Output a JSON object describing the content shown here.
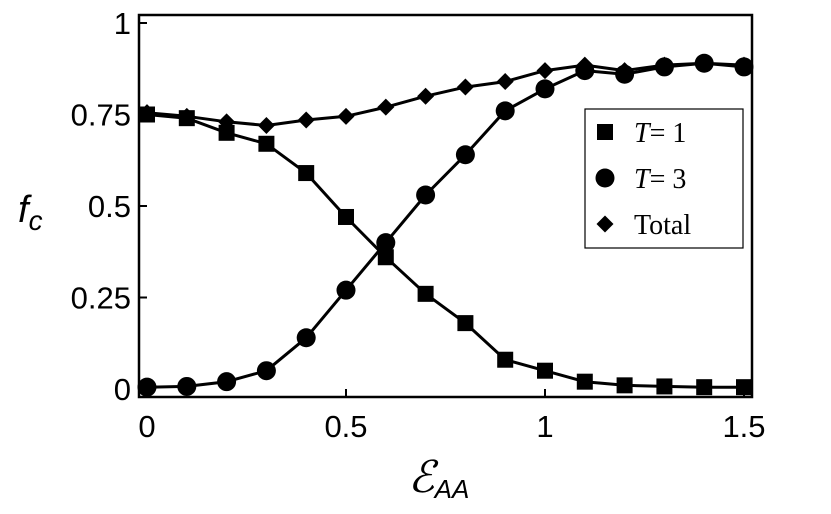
{
  "chart_data": {
    "type": "line",
    "x_axis": {
      "label_main": "ℰ",
      "label_sub": "AA",
      "range": [
        0,
        1.5
      ],
      "ticks": [
        {
          "value": 0,
          "label": "0"
        },
        {
          "value": 0.5,
          "label": "0.5"
        },
        {
          "value": 1,
          "label": "1"
        },
        {
          "value": 1.5,
          "label": "1.5"
        }
      ]
    },
    "y_axis": {
      "label_main": "f",
      "label_sub": "c",
      "range": [
        0,
        1
      ],
      "ticks": [
        {
          "value": 0,
          "label": "0"
        },
        {
          "value": 0.25,
          "label": "0.25"
        },
        {
          "value": 0.5,
          "label": "0.5"
        },
        {
          "value": 0.75,
          "label": "0.75"
        },
        {
          "value": 1,
          "label": "1"
        }
      ]
    },
    "legend": {
      "placement": "right",
      "entries": [
        {
          "series": "T1",
          "symbol_label": "T",
          "rest_label": "= 1"
        },
        {
          "series": "T3",
          "symbol_label": "T",
          "rest_label": "= 3"
        },
        {
          "series": "Total",
          "symbol_label": "",
          "rest_label": "Total"
        }
      ]
    },
    "series": [
      {
        "name": "T = 1",
        "id": "T1",
        "marker": "square",
        "x": [
          0,
          0.1,
          0.2,
          0.3,
          0.4,
          0.5,
          0.6,
          0.7,
          0.8,
          0.9,
          1.0,
          1.1,
          1.2,
          1.3,
          1.4,
          1.5
        ],
        "y": [
          0.75,
          0.74,
          0.7,
          0.67,
          0.59,
          0.47,
          0.36,
          0.26,
          0.18,
          0.08,
          0.05,
          0.02,
          0.01,
          0.007,
          0.005,
          0.005
        ]
      },
      {
        "name": "T = 3",
        "id": "T3",
        "marker": "circle",
        "x": [
          0,
          0.1,
          0.2,
          0.3,
          0.4,
          0.5,
          0.6,
          0.7,
          0.8,
          0.9,
          1.0,
          1.1,
          1.2,
          1.3,
          1.4,
          1.5
        ],
        "y": [
          0.005,
          0.007,
          0.02,
          0.05,
          0.14,
          0.27,
          0.4,
          0.53,
          0.64,
          0.76,
          0.82,
          0.87,
          0.86,
          0.88,
          0.89,
          0.88
        ]
      },
      {
        "name": "Total",
        "id": "Total",
        "marker": "diamond",
        "x": [
          0,
          0.1,
          0.2,
          0.3,
          0.4,
          0.5,
          0.6,
          0.7,
          0.8,
          0.9,
          1.0,
          1.1,
          1.2,
          1.3,
          1.4,
          1.5
        ],
        "y": [
          0.755,
          0.745,
          0.73,
          0.72,
          0.735,
          0.745,
          0.77,
          0.8,
          0.825,
          0.84,
          0.87,
          0.885,
          0.87,
          0.885,
          0.89,
          0.885
        ]
      }
    ],
    "grid": false,
    "colors": {
      "line": "#000000",
      "marker": "#000000"
    }
  }
}
